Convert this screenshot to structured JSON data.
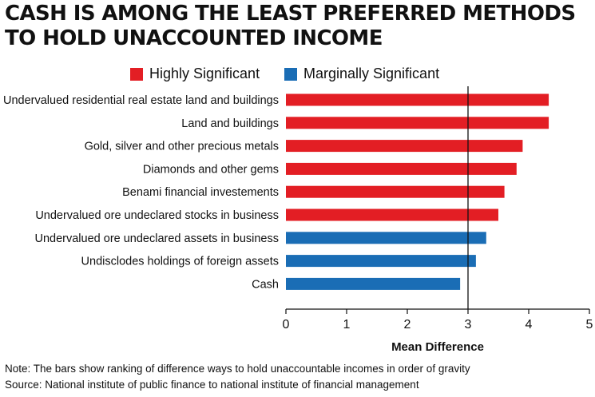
{
  "title": "CASH IS AMONG THE LEAST PREFERRED METHODS TO HOLD UNACCOUNTED INCOME",
  "legend": [
    {
      "label": "Highly Significant",
      "color": "#e31e24"
    },
    {
      "label": "Marginally Significant",
      "color": "#1a6db5"
    }
  ],
  "chart_data": {
    "type": "bar",
    "orientation": "horizontal",
    "categories": [
      "Undervalued residential real estate land and buildings",
      "Land and buildings",
      "Gold, silver and other precious metals",
      "Diamonds and other gems",
      "Benami financial investements",
      "Undervalued ore undeclared stocks in business",
      "Undervalued ore undeclared assets in business",
      "Undisclodes holdings of foreign assets",
      "Cash"
    ],
    "values": [
      4.33,
      4.33,
      3.9,
      3.8,
      3.6,
      3.5,
      3.3,
      3.13,
      2.87
    ],
    "groups": [
      "Highly Significant",
      "Highly Significant",
      "Highly Significant",
      "Highly Significant",
      "Highly Significant",
      "Highly Significant",
      "Marginally Significant",
      "Marginally Significant",
      "Marginally Significant"
    ],
    "xlabel": "Mean Difference",
    "xlim": [
      0,
      5
    ],
    "xticks": [
      0,
      1,
      2,
      3,
      4,
      5
    ],
    "reference_line": 3,
    "grid": false,
    "legend_position": "top"
  },
  "notes": {
    "note": "Note: The bars show ranking of difference ways to hold unaccountable incomes in order of gravity",
    "source": "Source: National institute of public finance to national institute of financial management"
  }
}
